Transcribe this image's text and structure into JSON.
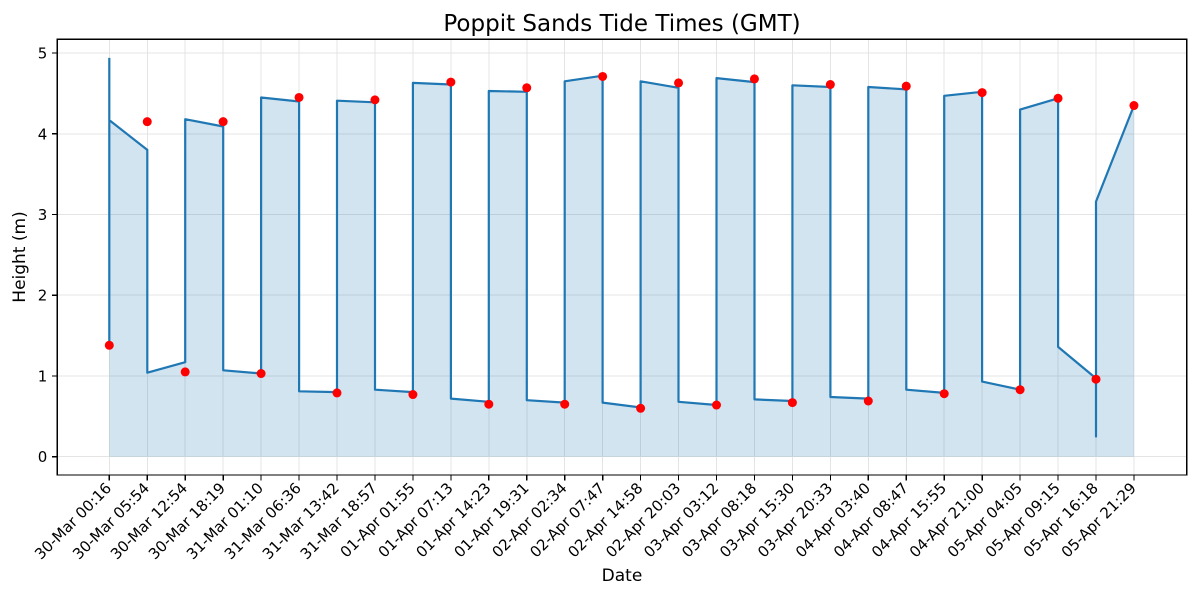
{
  "chart_data": {
    "type": "line",
    "title": "Poppit Sands Tide Times (GMT)",
    "xlabel": "Date",
    "ylabel": "Height (m)",
    "categories": [
      "30-Mar 00:16",
      "30-Mar 05:54",
      "30-Mar 12:54",
      "30-Mar 18:19",
      "31-Mar 01:10",
      "31-Mar 06:36",
      "31-Mar 13:42",
      "31-Mar 18:57",
      "01-Apr 01:55",
      "01-Apr 07:13",
      "01-Apr 14:23",
      "01-Apr 19:31",
      "02-Apr 02:34",
      "02-Apr 07:47",
      "02-Apr 14:58",
      "02-Apr 20:03",
      "03-Apr 03:12",
      "03-Apr 08:18",
      "03-Apr 15:30",
      "03-Apr 20:33",
      "04-Apr 03:40",
      "04-Apr 08:47",
      "04-Apr 15:55",
      "04-Apr 21:00",
      "05-Apr 04:05",
      "05-Apr 09:15",
      "05-Apr 16:18",
      "05-Apr 21:29"
    ],
    "yticks": [
      0,
      1,
      2,
      3,
      4,
      5
    ],
    "ylim": [
      -0.23,
      5.17
    ],
    "grid": true,
    "legend_position": "none",
    "series": [
      {
        "name": "tide-height-curve",
        "type": "line",
        "color": "#1f77b4",
        "fill_color": "rgba(31,119,180,0.2)",
        "line_width": 2.2,
        "points_xy": [
          [
            0,
            4.94
          ],
          [
            0,
            1.41
          ],
          [
            0,
            4.17
          ],
          [
            1,
            3.8
          ],
          [
            1,
            1.04
          ],
          [
            2,
            1.17
          ],
          [
            2,
            4.18
          ],
          [
            3,
            4.09
          ],
          [
            3,
            1.07
          ],
          [
            4,
            1.03
          ],
          [
            4,
            4.45
          ],
          [
            5,
            4.4
          ],
          [
            5,
            0.81
          ],
          [
            6,
            0.8
          ],
          [
            6,
            4.41
          ],
          [
            7,
            4.39
          ],
          [
            7,
            0.83
          ],
          [
            8,
            0.8
          ],
          [
            8,
            4.63
          ],
          [
            9,
            4.61
          ],
          [
            9,
            0.72
          ],
          [
            10,
            0.68
          ],
          [
            10,
            4.53
          ],
          [
            11,
            4.52
          ],
          [
            11,
            0.7
          ],
          [
            12,
            0.67
          ],
          [
            12,
            4.65
          ],
          [
            13,
            4.72
          ],
          [
            13,
            0.67
          ],
          [
            14,
            0.61
          ],
          [
            14,
            4.65
          ],
          [
            15,
            4.57
          ],
          [
            15,
            0.68
          ],
          [
            16,
            0.64
          ],
          [
            16,
            4.69
          ],
          [
            17,
            4.64
          ],
          [
            17,
            0.71
          ],
          [
            18,
            0.69
          ],
          [
            18,
            4.6
          ],
          [
            19,
            4.58
          ],
          [
            19,
            0.74
          ],
          [
            20,
            0.72
          ],
          [
            20,
            4.58
          ],
          [
            21,
            4.55
          ],
          [
            21,
            0.83
          ],
          [
            22,
            0.79
          ],
          [
            22,
            4.47
          ],
          [
            23,
            4.52
          ],
          [
            23,
            0.93
          ],
          [
            24,
            0.83
          ],
          [
            24,
            4.3
          ],
          [
            25,
            4.44
          ],
          [
            25,
            1.36
          ],
          [
            26,
            0.97
          ],
          [
            26,
            0.25
          ],
          [
            26,
            3.16
          ],
          [
            27,
            4.35
          ]
        ]
      },
      {
        "name": "tide-event-markers",
        "type": "scatter",
        "color": "#ff0000",
        "marker": "circle",
        "marker_radius": 4.5,
        "values": [
          1.38,
          4.15,
          1.05,
          4.15,
          1.03,
          4.45,
          0.79,
          4.42,
          0.77,
          4.64,
          0.65,
          4.57,
          0.65,
          4.71,
          0.6,
          4.63,
          0.64,
          4.68,
          0.67,
          4.61,
          0.69,
          4.59,
          0.78,
          4.51,
          0.83,
          4.44,
          0.96,
          4.35
        ]
      }
    ],
    "colors": {
      "grid": "#e4e4e4",
      "spine": "#000000",
      "background": "#ffffff",
      "text": "#000000"
    }
  }
}
